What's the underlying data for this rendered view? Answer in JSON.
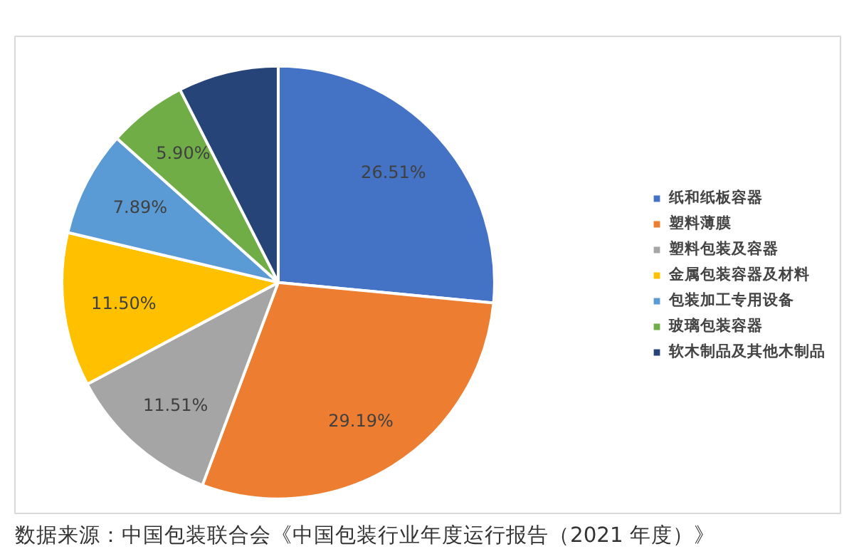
{
  "chart_data": {
    "type": "pie",
    "categories": [
      "纸和纸板容器",
      "塑料薄膜",
      "塑料包装及容器",
      "金属包装容器及材料",
      "包装加工专用设备",
      "玻璃包装容器",
      "软木制品及其他木制品"
    ],
    "values": [
      26.51,
      29.19,
      11.51,
      11.5,
      7.89,
      5.9,
      7.5
    ],
    "colors": [
      "#4472c4",
      "#ed7d31",
      "#a5a5a5",
      "#ffc000",
      "#5b9bd5",
      "#70ad47",
      "#264478"
    ],
    "value_labels": [
      "26.51%",
      "29.19%",
      "11.51%",
      "11.50%",
      "7.89%",
      "5.90%",
      null
    ],
    "legend": "right",
    "annotations": [
      "数据来源：中国包装联合会《中国包装行业年度运行报告（2021 年度）》"
    ]
  }
}
